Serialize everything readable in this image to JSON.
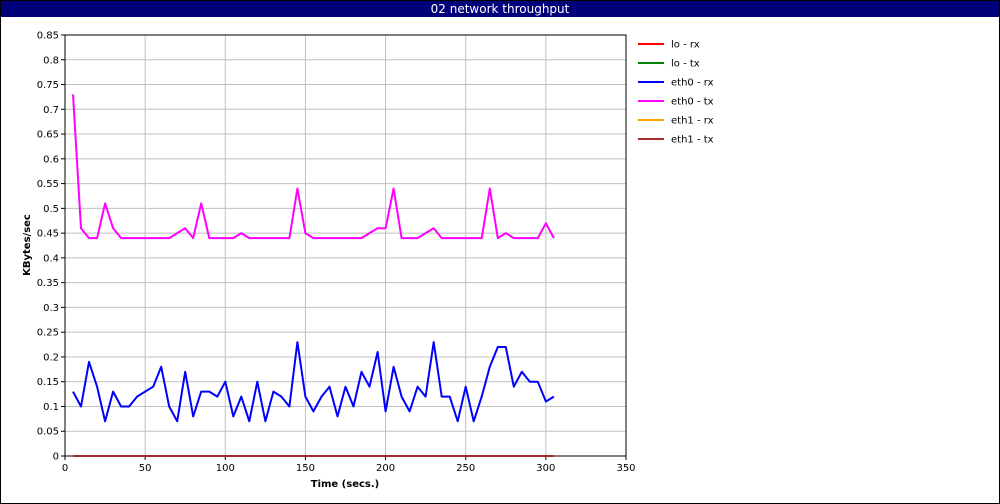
{
  "window": {
    "title": "02 network throughput"
  },
  "chart_data": {
    "type": "line",
    "title": "02 network throughput",
    "xlabel": "Time (secs.)",
    "ylabel": "KBytes/sec",
    "xlim": [
      0,
      350
    ],
    "ylim": [
      0,
      0.85
    ],
    "xticks": [
      0,
      50,
      100,
      150,
      200,
      250,
      300,
      350
    ],
    "yticks": [
      0,
      0.05,
      0.1,
      0.15,
      0.2,
      0.25,
      0.3,
      0.35,
      0.4,
      0.45,
      0.5,
      0.55,
      0.6,
      0.65,
      0.7,
      0.75,
      0.8,
      0.85
    ],
    "grid": true,
    "legend_position": "right",
    "x": [
      5,
      10,
      15,
      20,
      25,
      30,
      35,
      40,
      45,
      50,
      55,
      60,
      65,
      70,
      75,
      80,
      85,
      90,
      95,
      100,
      105,
      110,
      115,
      120,
      125,
      130,
      135,
      140,
      145,
      150,
      155,
      160,
      165,
      170,
      175,
      180,
      185,
      190,
      195,
      200,
      205,
      210,
      215,
      220,
      225,
      230,
      235,
      240,
      245,
      250,
      255,
      260,
      265,
      270,
      275,
      280,
      285,
      290,
      295,
      300,
      305
    ],
    "series": [
      {
        "name": "lo - rx",
        "color": "#ff0000",
        "values": [
          0,
          0,
          0,
          0,
          0,
          0,
          0,
          0,
          0,
          0,
          0,
          0,
          0,
          0,
          0,
          0,
          0,
          0,
          0,
          0,
          0,
          0,
          0,
          0,
          0,
          0,
          0,
          0,
          0,
          0,
          0,
          0,
          0,
          0,
          0,
          0,
          0,
          0,
          0,
          0,
          0,
          0,
          0,
          0,
          0,
          0,
          0,
          0,
          0,
          0,
          0,
          0,
          0,
          0,
          0,
          0,
          0,
          0,
          0,
          0,
          0
        ]
      },
      {
        "name": "lo - tx",
        "color": "#008000",
        "values": [
          0,
          0,
          0,
          0,
          0,
          0,
          0,
          0,
          0,
          0,
          0,
          0,
          0,
          0,
          0,
          0,
          0,
          0,
          0,
          0,
          0,
          0,
          0,
          0,
          0,
          0,
          0,
          0,
          0,
          0,
          0,
          0,
          0,
          0,
          0,
          0,
          0,
          0,
          0,
          0,
          0,
          0,
          0,
          0,
          0,
          0,
          0,
          0,
          0,
          0,
          0,
          0,
          0,
          0,
          0,
          0,
          0,
          0,
          0,
          0,
          0
        ]
      },
      {
        "name": "eth0 - rx",
        "color": "#0000ff",
        "values": [
          0.13,
          0.1,
          0.19,
          0.14,
          0.07,
          0.13,
          0.1,
          0.1,
          0.12,
          0.13,
          0.14,
          0.18,
          0.1,
          0.07,
          0.17,
          0.08,
          0.13,
          0.13,
          0.12,
          0.15,
          0.08,
          0.12,
          0.07,
          0.15,
          0.07,
          0.13,
          0.12,
          0.1,
          0.23,
          0.12,
          0.09,
          0.12,
          0.14,
          0.08,
          0.14,
          0.1,
          0.17,
          0.14,
          0.21,
          0.09,
          0.18,
          0.12,
          0.09,
          0.14,
          0.12,
          0.23,
          0.12,
          0.12,
          0.07,
          0.14,
          0.07,
          0.12,
          0.18,
          0.22,
          0.22,
          0.14,
          0.17,
          0.15,
          0.15,
          0.11,
          0.12
        ]
      },
      {
        "name": "eth0 - tx",
        "color": "#ff00ff",
        "values": [
          0.73,
          0.46,
          0.44,
          0.44,
          0.51,
          0.46,
          0.44,
          0.44,
          0.44,
          0.44,
          0.44,
          0.44,
          0.44,
          0.45,
          0.46,
          0.44,
          0.51,
          0.44,
          0.44,
          0.44,
          0.44,
          0.45,
          0.44,
          0.44,
          0.44,
          0.44,
          0.44,
          0.44,
          0.54,
          0.45,
          0.44,
          0.44,
          0.44,
          0.44,
          0.44,
          0.44,
          0.44,
          0.45,
          0.46,
          0.46,
          0.54,
          0.44,
          0.44,
          0.44,
          0.45,
          0.46,
          0.44,
          0.44,
          0.44,
          0.44,
          0.44,
          0.44,
          0.54,
          0.44,
          0.45,
          0.44,
          0.44,
          0.44,
          0.44,
          0.47,
          0.44
        ]
      },
      {
        "name": "eth1 - rx",
        "color": "#ffa500",
        "values": [
          0,
          0,
          0,
          0,
          0,
          0,
          0,
          0,
          0,
          0,
          0,
          0,
          0,
          0,
          0,
          0,
          0,
          0,
          0,
          0,
          0,
          0,
          0,
          0,
          0,
          0,
          0,
          0,
          0,
          0,
          0,
          0,
          0,
          0,
          0,
          0,
          0,
          0,
          0,
          0,
          0,
          0,
          0,
          0,
          0,
          0,
          0,
          0,
          0,
          0,
          0,
          0,
          0,
          0,
          0,
          0,
          0,
          0,
          0,
          0,
          0
        ]
      },
      {
        "name": "eth1 - tx",
        "color": "#a52a2a",
        "values": [
          0,
          0,
          0,
          0,
          0,
          0,
          0,
          0,
          0,
          0,
          0,
          0,
          0,
          0,
          0,
          0,
          0,
          0,
          0,
          0,
          0,
          0,
          0,
          0,
          0,
          0,
          0,
          0,
          0,
          0,
          0,
          0,
          0,
          0,
          0,
          0,
          0,
          0,
          0,
          0,
          0,
          0,
          0,
          0,
          0,
          0,
          0,
          0,
          0,
          0,
          0,
          0,
          0,
          0,
          0,
          0,
          0,
          0,
          0,
          0,
          0
        ]
      }
    ]
  }
}
